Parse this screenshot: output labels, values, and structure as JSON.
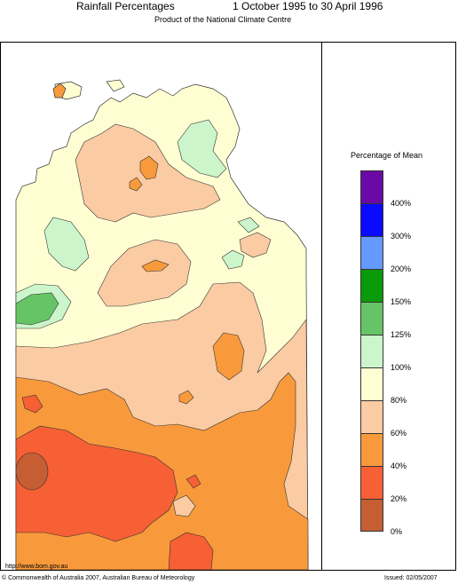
{
  "header": {
    "title": "Rainfall Percentages",
    "period": "1 October 1995 to 30 April 1996",
    "subtitle": "Product of the National Climate Centre"
  },
  "legend": {
    "title": "Percentage of Mean",
    "classes": [
      {
        "color": "#6a0aa6"
      },
      {
        "color": "#0a0aff"
      },
      {
        "color": "#6699ff"
      },
      {
        "color": "#0a9a0a"
      },
      {
        "color": "#66c466"
      },
      {
        "color": "#ccf5cc"
      },
      {
        "color": "#fffed2"
      },
      {
        "color": "#fbcba3"
      },
      {
        "color": "#f89a3c"
      },
      {
        "color": "#f75f35"
      },
      {
        "color": "#c55f33"
      }
    ],
    "labels": [
      "400%",
      "300%",
      "200%",
      "150%",
      "125%",
      "100%",
      "80%",
      "60%",
      "40%",
      "20%",
      "0%"
    ]
  },
  "footer": {
    "url": "http://www.bom.gov.au",
    "copyright": "© Commonwealth of Australia 2007, Australian Bureau of Meteorology",
    "issued": "Issued: 02/05/2007"
  }
}
